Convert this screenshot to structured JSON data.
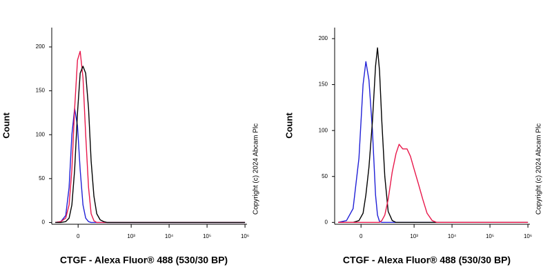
{
  "chart_data": [
    {
      "type": "line",
      "xlabel": "CTGF - Alexa Fluor® 488 (530/30 BP)",
      "ylabel": "Count",
      "copyright": "Copyright (c) 2024 Abcam Plc",
      "xscale": "biexponential",
      "xlim": [
        -190,
        1130000
      ],
      "ylim": [
        -2,
        222
      ],
      "xticks": [
        0,
        {
          "value": 1000,
          "label": "10³"
        },
        {
          "value": 10000,
          "label": "10⁴"
        },
        {
          "value": 100000,
          "label": "10⁵"
        },
        {
          "value": 1000000,
          "label": "10⁶"
        }
      ],
      "yticks": [
        0,
        50,
        100,
        150,
        200
      ],
      "x": [
        -150,
        -100,
        -66,
        -46,
        -31,
        -17,
        -3,
        10,
        24,
        38,
        54,
        70,
        89,
        111,
        142,
        180,
        226,
        300,
        500,
        1000,
        10000,
        1000000
      ],
      "series": [
        {
          "color": "#1f1fd6",
          "values": [
            0,
            1,
            8,
            40,
            100,
            130,
            110,
            60,
            20,
            5,
            1,
            0,
            0,
            0,
            0,
            0,
            0,
            0,
            0,
            0,
            0,
            0
          ]
        },
        {
          "color": "#e8174a",
          "values": [
            0,
            1,
            5,
            20,
            60,
            130,
            185,
            195,
            165,
            100,
            40,
            10,
            2,
            0,
            0,
            0,
            0,
            0,
            0,
            0,
            0,
            0
          ]
        },
        {
          "color": "#000000",
          "values": [
            0,
            0,
            1,
            5,
            20,
            60,
            125,
            170,
            178,
            170,
            130,
            70,
            30,
            10,
            3,
            1,
            0,
            0,
            0,
            0,
            0,
            0
          ]
        }
      ]
    },
    {
      "type": "line",
      "xlabel": "CTGF - Alexa Fluor® 488 (530/30 BP)",
      "ylabel": "Count",
      "copyright": "Copyright (c) 2024 Abcam Plc",
      "xscale": "biexponential",
      "xlim": [
        -190,
        1130000
      ],
      "ylim": [
        -2,
        212
      ],
      "xticks": [
        0,
        {
          "value": 1000,
          "label": "10³"
        },
        {
          "value": 10000,
          "label": "10⁴"
        },
        {
          "value": 100000,
          "label": "10⁵"
        },
        {
          "value": 1000000,
          "label": "10⁶"
        }
      ],
      "yticks": [
        0,
        50,
        100,
        150,
        200
      ],
      "x": [
        -150,
        -80,
        -40,
        -10,
        10,
        24,
        40,
        60,
        80,
        94,
        110,
        130,
        160,
        200,
        260,
        330,
        400,
        500,
        650,
        800,
        1000,
        1300,
        1700,
        2200,
        3000,
        4000,
        10000,
        1000000
      ],
      "series": [
        {
          "color": "#1f1fd6",
          "values": [
            0,
            2,
            15,
            70,
            150,
            175,
            155,
            100,
            30,
            8,
            1,
            0,
            0,
            0,
            0,
            0,
            0,
            0,
            0,
            0,
            0,
            0,
            0,
            0,
            0,
            0,
            0,
            0
          ]
        },
        {
          "color": "#000000",
          "values": [
            0,
            0,
            0,
            2,
            10,
            30,
            60,
            110,
            170,
            190,
            165,
            110,
            50,
            12,
            2,
            0,
            0,
            0,
            0,
            0,
            0,
            0,
            0,
            0,
            0,
            0,
            0,
            0
          ]
        },
        {
          "color": "#e8174a",
          "values": [
            0,
            0,
            0,
            0,
            0,
            0,
            0,
            0,
            0,
            0,
            0,
            2,
            8,
            25,
            55,
            75,
            85,
            80,
            80,
            72,
            58,
            42,
            25,
            10,
            2,
            0,
            0,
            0
          ]
        }
      ]
    }
  ]
}
